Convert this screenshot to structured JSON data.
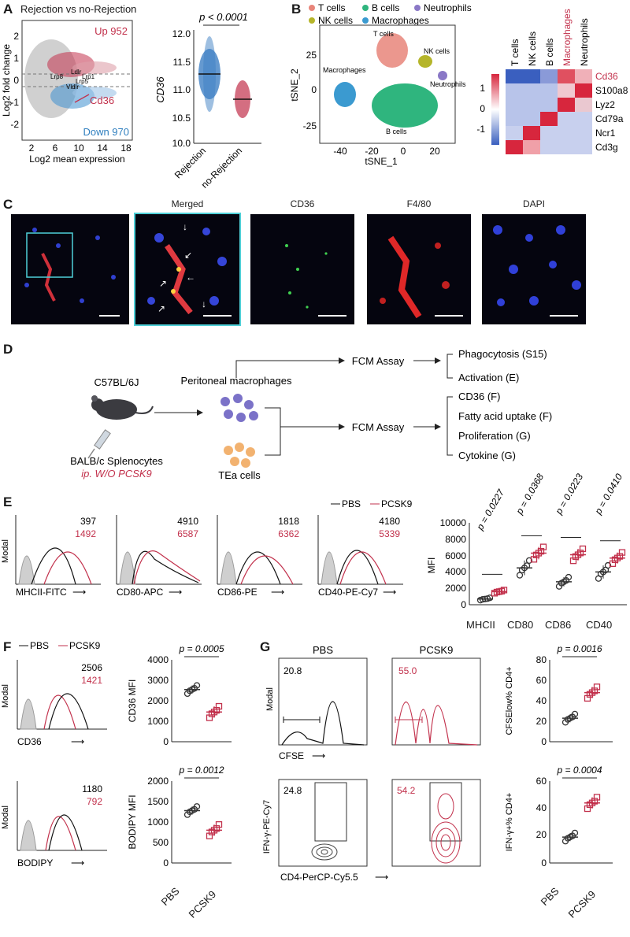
{
  "panels": {
    "A": {
      "letter": "A",
      "ma_title": "Rejection vs no-Rejection",
      "ma_ylabel": "Log2 fold change",
      "ma_xlabel": "Log2 mean expression",
      "ma_xticks": [
        "2",
        "6",
        "10",
        "14",
        "18"
      ],
      "ma_yticks": [
        "2",
        "1",
        "0",
        "-1",
        "-2"
      ],
      "up_label": "Up 952",
      "down_label": "Down 970",
      "gene_labels": [
        "Lrp8",
        "Ldlr",
        "Lrp1",
        "Lrp5",
        "Vldlr"
      ],
      "cd36_label": "Cd36",
      "dot_ylabel": "CD36",
      "dot_pvalue": "p < 0.0001",
      "dot_yticks": [
        "12.0",
        "11.5",
        "11.0",
        "10.5",
        "10.0"
      ],
      "dot_groups": [
        "Rejection",
        "no-Rejection"
      ]
    },
    "B": {
      "letter": "B",
      "legend": [
        "T cells",
        "B cells",
        "Neutrophils",
        "NK cells",
        "Macrophages"
      ],
      "legend_colors": [
        "#e8857a",
        "#2fb57e",
        "#8a78c6",
        "#b5b52a",
        "#3b9ad0"
      ],
      "cluster_labels": [
        "T cells",
        "NK cells",
        "Macrophages",
        "Neutrophils",
        "B cells"
      ],
      "tsne_xlabel": "tSNE_1",
      "tsne_ylabel": "tSNE_2",
      "tsne_xticks": [
        "-40",
        "-20",
        "0",
        "20"
      ],
      "tsne_yticks": [
        "25",
        "0",
        "-25"
      ],
      "heat_cols": [
        "T cells",
        "NK cells",
        "B cells",
        "Macrophages",
        "Neutrophils"
      ],
      "heat_rows": [
        "Cd36",
        "S100a8",
        "Lyz2",
        "Cd79a",
        "Ncr1",
        "Cd3g"
      ],
      "heat_scale": [
        "1",
        "0",
        "-1"
      ]
    },
    "C": {
      "letter": "C",
      "titles": [
        "Merged",
        "CD36",
        "F4/80",
        "DAPI"
      ]
    },
    "D": {
      "letter": "D",
      "mouse": "C57BL/6J",
      "injection_1": "BALB/c Splenocytes",
      "injection_2": "ip. W/O PCSK9",
      "macrophages": "Peritoneal macrophages",
      "tea": "TEa cells",
      "fcm_1": "FCM Assay",
      "fcm_2": "FCM Assay",
      "outputs_1": [
        "Phagocytosis (S15)",
        "Activation (E)"
      ],
      "outputs_2": [
        "CD36 (F)",
        "Fatty acid uptake (F)",
        "Proliferation (G)",
        "Cytokine (G)"
      ]
    },
    "E": {
      "letter": "E",
      "legend_pbs": "PBS",
      "legend_pcsk9": "PCSK9",
      "ylabel": "Modal",
      "histos": [
        {
          "marker": "MHCII-FITC",
          "pbs": "397",
          "pcsk9": "1492"
        },
        {
          "marker": "CD80-APC",
          "pbs": "4910",
          "pcsk9": "6587"
        },
        {
          "marker": "CD86-PE",
          "pbs": "1818",
          "pcsk9": "6362"
        },
        {
          "marker": "CD40-PE-Cy7",
          "pbs": "4180",
          "pcsk9": "5339"
        }
      ],
      "mfi_ylabel": "MFI",
      "mfi_yticks": [
        "10000",
        "8000",
        "6000",
        "4000",
        "2000",
        "0"
      ],
      "mfi_groups": [
        "MHCII",
        "CD80",
        "CD86",
        "CD40"
      ],
      "mfi_pvalues": [
        "p = 0.0227",
        "p = 0.0368",
        "p = 0.0223",
        "p = 0.0410"
      ]
    },
    "F": {
      "letter": "F",
      "legend_pbs": "PBS",
      "legend_pcsk9": "PCSK9",
      "ylabel": "Modal",
      "cd36": {
        "marker": "CD36",
        "pbs": "2506",
        "pcsk9": "1421"
      },
      "bodipy": {
        "marker": "BODIPY",
        "pbs": "1180",
        "pcsk9": "792"
      },
      "cd36_plot": {
        "ylabel": "CD36 MFI",
        "p": "p = 0.0005",
        "yticks": [
          "4000",
          "3000",
          "2000",
          "1000",
          "0"
        ]
      },
      "bodipy_plot": {
        "ylabel": "BODIPY MFI",
        "p": "p = 0.0012",
        "yticks": [
          "2000",
          "1500",
          "1000",
          "500",
          "0"
        ]
      },
      "groups": [
        "PBS",
        "PCSK9"
      ]
    },
    "G": {
      "letter": "G",
      "col_titles": [
        "PBS",
        "PCSK9"
      ],
      "ylabel": "Modal",
      "cfse_pbs": "20.8",
      "cfse_pcsk9": "55.0",
      "cfse_xlabel": "CFSE",
      "ifn_ylabel": "IFN-γ-PE-Cy7",
      "ifn_xlabel": "CD4-PerCP-Cy5.5",
      "ifn_pbs": "24.8",
      "ifn_pcsk9": "54.2",
      "cfse_plot": {
        "ylabel": "CFSElow% CD4+",
        "p": "p = 0.0016",
        "yticks": [
          "80",
          "60",
          "40",
          "20",
          "0"
        ]
      },
      "ifn_plot": {
        "ylabel": "IFN-γ+% CD4+",
        "p": "p = 0.0004",
        "yticks": [
          "60",
          "40",
          "20",
          "0"
        ]
      },
      "groups": [
        "PBS",
        "PCSK9"
      ]
    }
  },
  "chart_data": [
    {
      "type": "scatter",
      "title": "Rejection vs no-Rejection",
      "xlabel": "Log2 mean expression",
      "ylabel": "Log2 fold change",
      "xlim": [
        0,
        18
      ],
      "ylim": [
        -2.5,
        2.5
      ],
      "x": [
        3,
        5,
        7,
        9,
        11,
        13,
        9.5
      ],
      "y": [
        1.2,
        1.6,
        1.0,
        0.8,
        -0.8,
        -1.1,
        -0.6
      ],
      "annotations": [
        "Up 952",
        "Down 970",
        "Cd36"
      ]
    },
    {
      "type": "scatter",
      "title": "",
      "ylabel": "CD36",
      "categories": [
        "Rejection",
        "no-Rejection"
      ],
      "means": [
        11.3,
        10.85
      ],
      "ylim": [
        10.0,
        12.0
      ]
    },
    {
      "type": "bar",
      "title": "",
      "ylabel": "MFI",
      "categories": [
        "MHCII",
        "CD80",
        "CD86",
        "CD40"
      ],
      "series": [
        {
          "name": "PBS",
          "values": [
            700,
            4500,
            2800,
            4000
          ]
        },
        {
          "name": "PCSK9",
          "values": [
            1600,
            6300,
            6100,
            5700
          ]
        }
      ],
      "ylim": [
        0,
        10000
      ]
    },
    {
      "type": "scatter",
      "ylabel": "CD36 MFI",
      "categories": [
        "PBS",
        "PCSK9"
      ],
      "means": [
        2550,
        1450
      ],
      "ylim": [
        0,
        4000
      ]
    },
    {
      "type": "scatter",
      "ylabel": "BODIPY MFI",
      "categories": [
        "PBS",
        "PCSK9"
      ],
      "means": [
        1280,
        800
      ],
      "ylim": [
        0,
        2000
      ]
    },
    {
      "type": "scatter",
      "ylabel": "CFSElow% CD4+",
      "categories": [
        "PBS",
        "PCSK9"
      ],
      "means": [
        23,
        48
      ],
      "ylim": [
        0,
        80
      ]
    },
    {
      "type": "scatter",
      "ylabel": "IFN-γ+% CD4+",
      "categories": [
        "PBS",
        "PCSK9"
      ],
      "means": [
        19,
        44
      ],
      "ylim": [
        0,
        60
      ]
    }
  ]
}
